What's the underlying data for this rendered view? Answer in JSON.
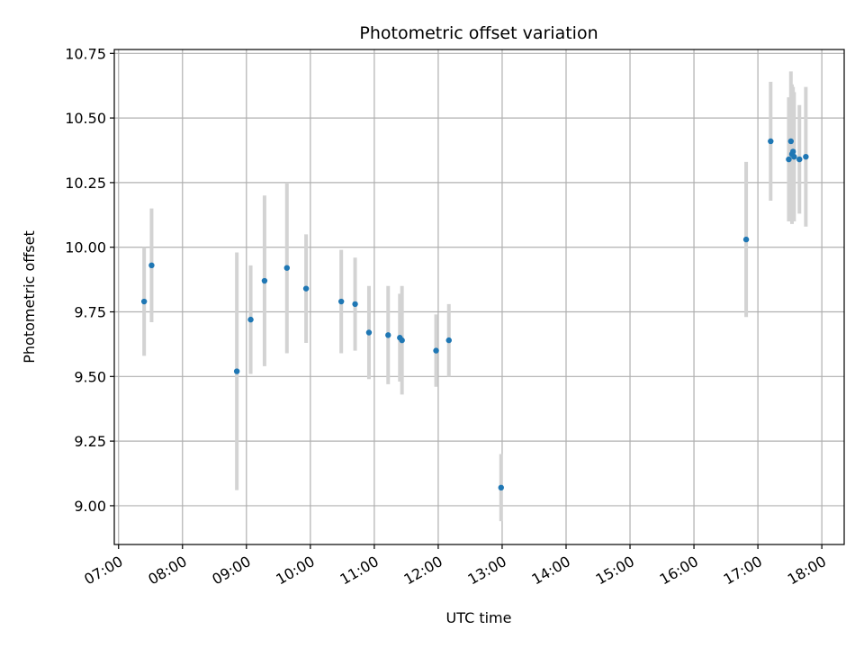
{
  "chart_data": {
    "type": "scatter",
    "title": "Photometric offset variation",
    "xlabel": "UTC time",
    "ylabel": "Photometric offset",
    "xlim": [
      "06:56",
      "18:21"
    ],
    "ylim": [
      8.85,
      10.765
    ],
    "grid": true,
    "x_ticks": [
      "07:00",
      "08:00",
      "09:00",
      "10:00",
      "11:00",
      "12:00",
      "13:00",
      "14:00",
      "15:00",
      "16:00",
      "17:00",
      "18:00"
    ],
    "y_ticks": [
      "9.00",
      "9.25",
      "9.50",
      "9.75",
      "10.00",
      "10.25",
      "10.50",
      "10.75"
    ],
    "y_tick_values": [
      9.0,
      9.25,
      9.5,
      9.75,
      10.0,
      10.25,
      10.5,
      10.75
    ],
    "colors": {
      "marker": "#1f77b4",
      "errorbar": "#d3d3d3",
      "grid": "#b0b0b0"
    },
    "points": [
      {
        "x": "07:24",
        "y": 9.79,
        "err": 0.21
      },
      {
        "x": "07:31",
        "y": 9.93,
        "err": 0.22
      },
      {
        "x": "08:51",
        "y": 9.52,
        "err": 0.46
      },
      {
        "x": "09:04",
        "y": 9.72,
        "err": 0.21
      },
      {
        "x": "09:17",
        "y": 9.87,
        "err": 0.33
      },
      {
        "x": "09:38",
        "y": 9.92,
        "err": 0.33
      },
      {
        "x": "09:56",
        "y": 9.84,
        "err": 0.21
      },
      {
        "x": "10:29",
        "y": 9.79,
        "err": 0.2
      },
      {
        "x": "10:42",
        "y": 9.78,
        "err": 0.18
      },
      {
        "x": "10:55",
        "y": 9.67,
        "err": 0.18
      },
      {
        "x": "11:13",
        "y": 9.66,
        "err": 0.19
      },
      {
        "x": "11:24",
        "y": 9.65,
        "err": 0.17
      },
      {
        "x": "11:26",
        "y": 9.64,
        "err": 0.21
      },
      {
        "x": "11:58",
        "y": 9.6,
        "err": 0.14
      },
      {
        "x": "12:10",
        "y": 9.64,
        "err": 0.14
      },
      {
        "x": "12:59",
        "y": 9.07,
        "err": 0.13
      },
      {
        "x": "16:49",
        "y": 10.03,
        "err": 0.3
      },
      {
        "x": "17:12",
        "y": 10.41,
        "err": 0.23
      },
      {
        "x": "17:29",
        "y": 10.34,
        "err": 0.24
      },
      {
        "x": "17:31",
        "y": 10.41,
        "err": 0.27
      },
      {
        "x": "17:32",
        "y": 10.36,
        "err": 0.27
      },
      {
        "x": "17:33",
        "y": 10.37,
        "err": 0.25
      },
      {
        "x": "17:34",
        "y": 10.35,
        "err": 0.25
      },
      {
        "x": "17:39",
        "y": 10.34,
        "err": 0.21
      },
      {
        "x": "17:45",
        "y": 10.35,
        "err": 0.27
      }
    ]
  }
}
